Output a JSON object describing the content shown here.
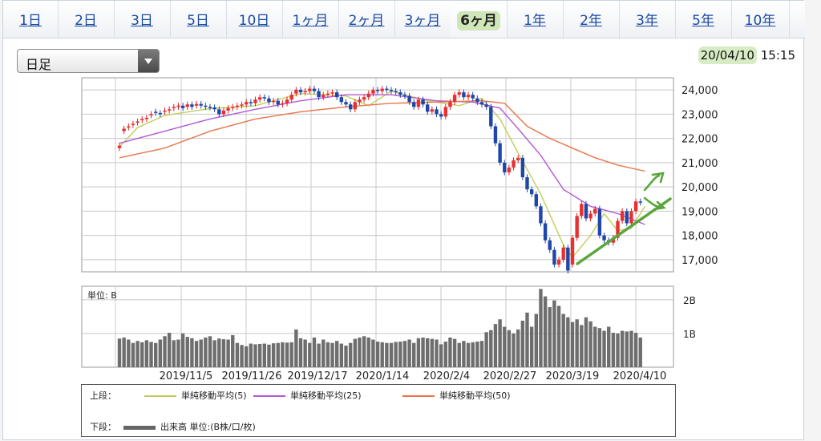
{
  "tabs": [
    {
      "label": "1日",
      "active": false
    },
    {
      "label": "2日",
      "active": false
    },
    {
      "label": "3日",
      "active": false
    },
    {
      "label": "5日",
      "active": false
    },
    {
      "label": "10日",
      "active": false
    },
    {
      "label": "1ヶ月",
      "active": false
    },
    {
      "label": "2ヶ月",
      "active": false
    },
    {
      "label": "3ヶ月",
      "active": false
    },
    {
      "label": "6ヶ月",
      "active": true
    },
    {
      "label": "1年",
      "active": false
    },
    {
      "label": "2年",
      "active": false
    },
    {
      "label": "3年",
      "active": false
    },
    {
      "label": "5年",
      "active": false
    },
    {
      "label": "10年",
      "active": false
    }
  ],
  "period_select": {
    "value": "日足"
  },
  "datetime": {
    "date": "20/04/10",
    "time": "15:15"
  },
  "chart_data": [
    {
      "type": "candlestick",
      "ylim": [
        16500,
        24500
      ],
      "y_ticks": [
        "17,000",
        "18,000",
        "19,000",
        "20,000",
        "21,000",
        "22,000",
        "23,000",
        "24,000"
      ],
      "y_tick_values": [
        17000,
        18000,
        19000,
        20000,
        21000,
        22000,
        23000,
        24000
      ],
      "x_tick_labels": [
        "2019/11/5",
        "2019/11/26",
        "2019/12/17",
        "2020/1/14",
        "2020/2/4",
        "2020/2/27",
        "2020/3/19",
        "2020/4/10"
      ],
      "close": [
        21700,
        22400,
        22500,
        22600,
        22700,
        22800,
        22850,
        23000,
        23050,
        23000,
        23150,
        23200,
        23300,
        23350,
        23250,
        23400,
        23300,
        23420,
        23350,
        23300,
        23280,
        23200,
        23000,
        23150,
        23250,
        23300,
        23350,
        23400,
        23500,
        23450,
        23600,
        23700,
        23650,
        23500,
        23550,
        23400,
        23450,
        23600,
        23800,
        24000,
        23900,
        23950,
        24050,
        23950,
        23700,
        23800,
        23850,
        23900,
        23700,
        23500,
        23400,
        23200,
        23500,
        23600,
        23700,
        23850,
        24000,
        23950,
        24050,
        24000,
        23950,
        23900,
        23800,
        23750,
        23500,
        23300,
        23600,
        23400,
        23100,
        23200,
        23000,
        22900,
        23300,
        23500,
        23800,
        23900,
        23700,
        23800,
        23650,
        23500,
        23400,
        23300,
        22500,
        21800,
        21000,
        20600,
        20800,
        21100,
        21200,
        20400,
        19900,
        19700,
        19200,
        18500,
        17800,
        17400,
        16800,
        17000,
        17500,
        16550,
        17900,
        18800,
        19300,
        18700,
        18900,
        19100,
        18000,
        17800,
        17700,
        17900,
        18600,
        19000,
        18500,
        19000,
        19400,
        19350
      ],
      "open": [
        21600,
        22300,
        22450,
        22550,
        22650,
        22750,
        22800,
        22950,
        23100,
        23050,
        23100,
        23150,
        23250,
        23300,
        23350,
        23300,
        23400,
        23350,
        23420,
        23350,
        23300,
        23280,
        23200,
        23000,
        23150,
        23250,
        23300,
        23350,
        23400,
        23500,
        23450,
        23600,
        23700,
        23650,
        23500,
        23550,
        23400,
        23450,
        23600,
        23850,
        24000,
        23900,
        23950,
        24050,
        23950,
        23700,
        23800,
        23850,
        23900,
        23700,
        23500,
        23400,
        23200,
        23500,
        23600,
        23700,
        23850,
        24000,
        23950,
        24050,
        24000,
        23950,
        23900,
        23800,
        23750,
        23500,
        23300,
        23600,
        23400,
        23100,
        23200,
        23000,
        22900,
        23300,
        23500,
        23800,
        23900,
        23700,
        23800,
        23650,
        23500,
        23400,
        23300,
        22500,
        21800,
        21000,
        20600,
        20800,
        21100,
        21200,
        20400,
        19900,
        19700,
        19200,
        18500,
        17800,
        17400,
        16800,
        17000,
        17500,
        16800,
        17900,
        18800,
        19300,
        18700,
        18900,
        19100,
        18000,
        17800,
        17700,
        17900,
        18600,
        19000,
        18500,
        19000,
        19400
      ],
      "ma_series": [
        {
          "name": "単純移動平均(5)",
          "color": "#c3cc5a",
          "values": [
            [
              0,
              21650
            ],
            [
              4,
              22450
            ],
            [
              10,
              22950
            ],
            [
              20,
              23230
            ],
            [
              30,
              23350
            ],
            [
              40,
              23850
            ],
            [
              50,
              23750
            ],
            [
              55,
              23350
            ],
            [
              60,
              23950
            ],
            [
              68,
              23550
            ],
            [
              75,
              23350
            ],
            [
              80,
              23650
            ],
            [
              84,
              22800
            ],
            [
              88,
              21400
            ],
            [
              93,
              19700
            ],
            [
              98,
              17600
            ],
            [
              100,
              17100
            ],
            [
              104,
              18000
            ],
            [
              107,
              18900
            ],
            [
              110,
              18200
            ],
            [
              113,
              18300
            ],
            [
              116,
              19200
            ]
          ]
        },
        {
          "name": "単純移動平均(25)",
          "color": "#b25ad6",
          "values": [
            [
              0,
              21800
            ],
            [
              10,
              22300
            ],
            [
              20,
              22800
            ],
            [
              30,
              23200
            ],
            [
              40,
              23550
            ],
            [
              50,
              23800
            ],
            [
              60,
              23800
            ],
            [
              70,
              23550
            ],
            [
              78,
              23500
            ],
            [
              84,
              23250
            ],
            [
              88,
              22400
            ],
            [
              93,
              21300
            ],
            [
              98,
              19900
            ],
            [
              104,
              19200
            ],
            [
              110,
              18900
            ],
            [
              116,
              18450
            ]
          ]
        },
        {
          "name": "単純移動平均(50)",
          "color": "#e9744a",
          "values": [
            [
              0,
              21200
            ],
            [
              10,
              21600
            ],
            [
              20,
              22300
            ],
            [
              30,
              22800
            ],
            [
              40,
              23100
            ],
            [
              50,
              23300
            ],
            [
              60,
              23450
            ],
            [
              70,
              23500
            ],
            [
              80,
              23550
            ],
            [
              85,
              23450
            ],
            [
              90,
              22500
            ],
            [
              95,
              22000
            ],
            [
              100,
              21600
            ],
            [
              105,
              21200
            ],
            [
              110,
              20900
            ],
            [
              116,
              20650
            ]
          ]
        }
      ]
    },
    {
      "type": "bar",
      "title": "単位: B",
      "ylim": [
        0,
        2.4
      ],
      "y_ticks": [
        "1B",
        "2B"
      ],
      "y_tick_values": [
        1,
        2
      ],
      "x_tick_labels": [
        "2019/11/5",
        "2019/11/26",
        "2019/12/17",
        "2020/1/14",
        "2020/2/4",
        "2020/2/27",
        "2020/3/19",
        "2020/4/10"
      ],
      "values": [
        0.85,
        0.88,
        0.82,
        0.72,
        0.78,
        0.74,
        0.8,
        0.75,
        0.72,
        0.82,
        0.92,
        1.02,
        0.8,
        0.82,
        1.0,
        0.9,
        0.86,
        0.78,
        0.82,
        0.88,
        0.92,
        0.8,
        0.85,
        0.83,
        0.82,
        0.95,
        0.72,
        0.66,
        0.62,
        0.7,
        0.68,
        0.69,
        0.7,
        0.67,
        0.71,
        0.72,
        0.74,
        0.73,
        0.74,
        1.12,
        0.86,
        0.82,
        0.72,
        0.88,
        0.7,
        0.82,
        0.74,
        0.72,
        0.78,
        0.7,
        0.64,
        0.72,
        0.84,
        0.88,
        0.92,
        0.88,
        0.82,
        0.76,
        0.74,
        0.72,
        0.72,
        0.75,
        0.76,
        0.78,
        0.82,
        0.72,
        0.86,
        0.88,
        0.86,
        0.84,
        0.82,
        0.68,
        0.76,
        0.88,
        0.84,
        0.72,
        0.78,
        0.72,
        0.74,
        0.76,
        0.78,
        1.04,
        1.1,
        1.28,
        1.42,
        1.2,
        1.1,
        1.0,
        1.12,
        1.38,
        1.62,
        1.2,
        1.58,
        2.32,
        2.1,
        1.78,
        1.98,
        1.82,
        1.58,
        1.48,
        1.34,
        1.42,
        1.25,
        1.48,
        1.36,
        1.2,
        1.16,
        1.08,
        1.2,
        1.02,
        1.0,
        1.08,
        1.06,
        1.08,
        1.02,
        0.88
      ]
    }
  ],
  "legend": {
    "upper_label": "上段：",
    "ma5": "単純移動平均(5)",
    "ma25": "単純移動平均(25)",
    "ma50": "単純移動平均(50)",
    "lower_label": "下段：",
    "volume": "出来高 単位:(B株/口/枚)"
  }
}
